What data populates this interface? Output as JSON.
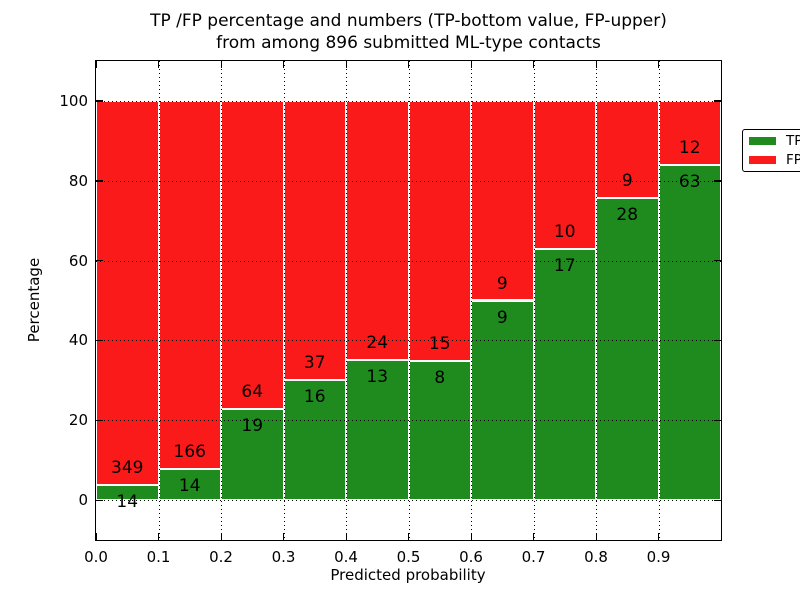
{
  "title": {
    "line1": "TP /FP percentage and numbers (TP-bottom value, FP-upper)",
    "line2": "from among 896 submitted ML-type contacts"
  },
  "axes": {
    "xlabel": "Predicted probability",
    "ylabel": "Percentage"
  },
  "legend": {
    "items": [
      {
        "label": "TP",
        "color": "#1f8b1f"
      },
      {
        "label": "FP",
        "color": "#fa1a1a"
      }
    ]
  },
  "chart_data": {
    "type": "bar",
    "stacked": true,
    "normalized_to_percent": true,
    "title": "TP /FP percentage and numbers (TP-bottom value, FP-upper) from among 896 submitted ML-type contacts",
    "xlabel": "Predicted probability",
    "ylabel": "Percentage",
    "total_contacts": 896,
    "bin_width": 0.1,
    "x_bin_starts": [
      0.0,
      0.1,
      0.2,
      0.3,
      0.4,
      0.5,
      0.6,
      0.7,
      0.8,
      0.9
    ],
    "series": [
      {
        "name": "TP",
        "color": "#1f8b1f",
        "counts": [
          14,
          14,
          19,
          16,
          13,
          8,
          9,
          17,
          28,
          63
        ]
      },
      {
        "name": "FP",
        "color": "#fa1a1a",
        "counts": [
          349,
          166,
          64,
          37,
          24,
          15,
          9,
          10,
          9,
          12
        ]
      }
    ],
    "tp_percent_of_bin": [
      3.86,
      7.78,
      22.89,
      30.19,
      35.14,
      34.78,
      50.0,
      62.96,
      75.68,
      84.0
    ],
    "x_tick_labels": [
      "0.0",
      "0.1",
      "0.2",
      "0.3",
      "0.4",
      "0.5",
      "0.6",
      "0.7",
      "0.8",
      "0.9"
    ],
    "y_ticks": [
      0,
      20,
      40,
      60,
      80,
      100
    ],
    "ylim": [
      -10,
      110
    ],
    "xlim": [
      0.0,
      1.0
    ],
    "grid": "dotted black, horizontal at y ticks and vertical at bin edges",
    "legend_position": "upper right",
    "bar_edge_color": "#ffffff"
  }
}
